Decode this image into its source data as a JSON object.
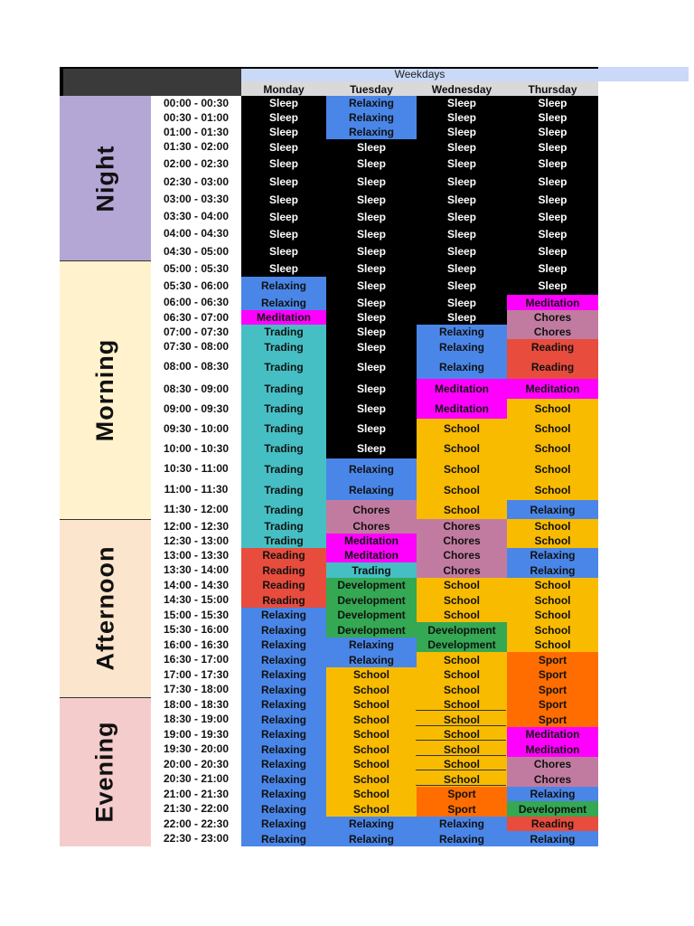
{
  "header": {
    "weekdays_label": "Weekdays"
  },
  "days": [
    "Monday",
    "Tuesday",
    "Wednesday",
    "Thursday"
  ],
  "periods": [
    {
      "label": "Night",
      "start": 0,
      "end": 10,
      "color": "#b4a7d6"
    },
    {
      "label": "Morning",
      "start": 10,
      "end": 24,
      "color": "#fff2cc"
    },
    {
      "label": "Afternoon",
      "start": 24,
      "end": 36,
      "color": "#fce5cd"
    },
    {
      "label": "Evening",
      "start": 36,
      "end": 46,
      "color": "#f4cccc"
    }
  ],
  "activity_colors": {
    "Sleep": "#000000",
    "Relaxing": "#4a86e8",
    "Meditation": "#ff00ff",
    "Trading": "#45bfc4",
    "Chores": "#c27ba0",
    "Reading": "#e84c3d",
    "School": "#f9bb00",
    "Development": "#34a853",
    "Sport": "#ff6d01"
  },
  "rows": [
    {
      "time": "00:00 - 00:30",
      "acts": [
        "Sleep",
        "Relaxing",
        "Sleep",
        "Sleep"
      ]
    },
    {
      "time": "00:30 - 01:00",
      "acts": [
        "Sleep",
        "Relaxing",
        "Sleep",
        "Sleep"
      ]
    },
    {
      "time": "01:00 - 01:30",
      "acts": [
        "Sleep",
        "Relaxing",
        "Sleep",
        "Sleep"
      ]
    },
    {
      "time": "01:30 - 02:00",
      "acts": [
        "Sleep",
        "Sleep",
        "Sleep",
        "Sleep"
      ]
    },
    {
      "time": "02:00 - 02:30",
      "acts": [
        "Sleep",
        "Sleep",
        "Sleep",
        "Sleep"
      ]
    },
    {
      "time": "02:30 - 03:00",
      "acts": [
        "Sleep",
        "Sleep",
        "Sleep",
        "Sleep"
      ]
    },
    {
      "time": "03:00 - 03:30",
      "acts": [
        "Sleep",
        "Sleep",
        "Sleep",
        "Sleep"
      ]
    },
    {
      "time": "03:30 - 04:00",
      "acts": [
        "Sleep",
        "Sleep",
        "Sleep",
        "Sleep"
      ]
    },
    {
      "time": "04:00 - 04:30",
      "acts": [
        "Sleep",
        "Sleep",
        "Sleep",
        "Sleep"
      ]
    },
    {
      "time": "04:30 - 05:00",
      "acts": [
        "Sleep",
        "Sleep",
        "Sleep",
        "Sleep"
      ]
    },
    {
      "time": "05:00 : 05:30",
      "acts": [
        "Sleep",
        "Sleep",
        "Sleep",
        "Sleep"
      ]
    },
    {
      "time": "05:30 - 06:00",
      "acts": [
        "Relaxing",
        "Sleep",
        "Sleep",
        "Sleep"
      ]
    },
    {
      "time": "06:00 - 06:30",
      "acts": [
        "Relaxing",
        "Sleep",
        "Sleep",
        "Meditation"
      ]
    },
    {
      "time": "06:30 - 07:00",
      "acts": [
        "Meditation",
        "Sleep",
        "Sleep",
        "Chores"
      ]
    },
    {
      "time": "07:00 - 07:30",
      "acts": [
        "Trading",
        "Sleep",
        "Relaxing",
        "Chores"
      ]
    },
    {
      "time": "07:30 - 08:00",
      "acts": [
        "Trading",
        "Sleep",
        "Relaxing",
        "Reading"
      ]
    },
    {
      "time": "08:00 - 08:30",
      "acts": [
        "Trading",
        "Sleep",
        "Relaxing",
        "Reading"
      ]
    },
    {
      "time": "08:30 - 09:00",
      "acts": [
        "Trading",
        "Sleep",
        "Meditation",
        "Meditation"
      ]
    },
    {
      "time": "09:00 - 09:30",
      "acts": [
        "Trading",
        "Sleep",
        "Meditation",
        "School"
      ]
    },
    {
      "time": "09:30 - 10:00",
      "acts": [
        "Trading",
        "Sleep",
        "School",
        "School"
      ]
    },
    {
      "time": "10:00 - 10:30",
      "acts": [
        "Trading",
        "Sleep",
        "School",
        "School"
      ]
    },
    {
      "time": "10:30 - 11:00",
      "acts": [
        "Trading",
        "Relaxing",
        "School",
        "School"
      ]
    },
    {
      "time": "11:00 - 11:30",
      "acts": [
        "Trading",
        "Relaxing",
        "School",
        "School"
      ]
    },
    {
      "time": "11:30 - 12:00",
      "acts": [
        "Trading",
        "Chores",
        "School",
        "Relaxing"
      ]
    },
    {
      "time": "12:00 - 12:30",
      "acts": [
        "Trading",
        "Chores",
        "Chores",
        "School"
      ]
    },
    {
      "time": "12:30 - 13:00",
      "acts": [
        "Trading",
        "Meditation",
        "Chores",
        "School"
      ]
    },
    {
      "time": "13:00 - 13:30",
      "acts": [
        "Reading",
        "Meditation",
        "Chores",
        "Relaxing"
      ]
    },
    {
      "time": "13:30 - 14:00",
      "acts": [
        "Reading",
        "Trading",
        "Chores",
        "Relaxing"
      ]
    },
    {
      "time": "14:00 - 14:30",
      "acts": [
        "Reading",
        "Development",
        "School",
        "School"
      ]
    },
    {
      "time": "14:30 - 15:00",
      "acts": [
        "Reading",
        "Development",
        "School",
        "School"
      ]
    },
    {
      "time": "15:00 - 15:30",
      "acts": [
        "Relaxing",
        "Development",
        "School",
        "School"
      ]
    },
    {
      "time": "15:30 - 16:00",
      "acts": [
        "Relaxing",
        "Development",
        "Development",
        "School"
      ]
    },
    {
      "time": "16:00 - 16:30",
      "acts": [
        "Relaxing",
        "Relaxing",
        "Development",
        "School"
      ]
    },
    {
      "time": "16:30 - 17:00",
      "acts": [
        "Relaxing",
        "Relaxing",
        "School",
        "Sport"
      ]
    },
    {
      "time": "17:00 - 17:30",
      "acts": [
        "Relaxing",
        "School",
        "School",
        "Sport"
      ]
    },
    {
      "time": "17:30 - 18:00",
      "acts": [
        "Relaxing",
        "School",
        "School",
        "Sport"
      ]
    },
    {
      "time": "18:00 - 18:30",
      "acts": [
        "Relaxing",
        "School",
        "School",
        "Sport"
      ]
    },
    {
      "time": "18:30 - 19:00",
      "acts": [
        "Relaxing",
        "School",
        "School",
        "Sport"
      ]
    },
    {
      "time": "19:00 - 19:30",
      "acts": [
        "Relaxing",
        "School",
        "School",
        "Meditation"
      ]
    },
    {
      "time": "19:30 - 20:00",
      "acts": [
        "Relaxing",
        "School",
        "School",
        "Meditation"
      ]
    },
    {
      "time": "20:00 - 20:30",
      "acts": [
        "Relaxing",
        "School",
        "School",
        "Chores"
      ]
    },
    {
      "time": "20:30 - 21:00",
      "acts": [
        "Relaxing",
        "School",
        "School",
        "Chores"
      ]
    },
    {
      "time": "21:00 - 21:30",
      "acts": [
        "Relaxing",
        "School",
        "Sport",
        "Relaxing"
      ]
    },
    {
      "time": "21:30 - 22:00",
      "acts": [
        "Relaxing",
        "School",
        "Sport",
        "Development"
      ]
    },
    {
      "time": "22:00 - 22:30",
      "acts": [
        "Relaxing",
        "Relaxing",
        "Relaxing",
        "Reading"
      ]
    },
    {
      "time": "22:30 - 23:00",
      "acts": [
        "Relaxing",
        "Relaxing",
        "Relaxing",
        "Relaxing"
      ]
    }
  ]
}
